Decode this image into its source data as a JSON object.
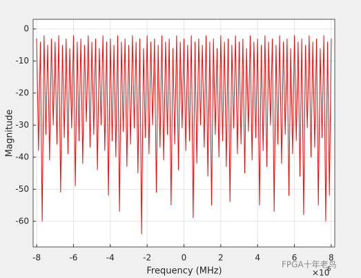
{
  "chart_data": {
    "type": "line",
    "xlabel": "Frequency (MHz)",
    "ylabel": "Magnitude",
    "x_multiplier": {
      "base": "×10",
      "exponent": "6"
    },
    "watermark": "FPGA十年老鸟",
    "xlim": [
      -8.192,
      8.192
    ],
    "ylim": [
      -68,
      3
    ],
    "xticks": [
      -8,
      -6,
      -4,
      -2,
      0,
      2,
      4,
      6,
      8
    ],
    "yticks": [
      0,
      -10,
      -20,
      -30,
      -40,
      -50,
      -60
    ],
    "grid": true,
    "x": [
      -8,
      -7.9,
      -7.8,
      -7.7,
      -7.6,
      -7.5,
      -7.4,
      -7.3,
      -7.2,
      -7.1,
      -7,
      -6.9,
      -6.8,
      -6.7,
      -6.6,
      -6.5,
      -6.4,
      -6.3,
      -6.2,
      -6.1,
      -6,
      -5.9,
      -5.8,
      -5.7,
      -5.6,
      -5.5,
      -5.4,
      -5.3,
      -5.2,
      -5.1,
      -5,
      -4.9,
      -4.8,
      -4.7,
      -4.6,
      -4.5,
      -4.4,
      -4.3,
      -4.2,
      -4.1,
      -4,
      -3.9,
      -3.8,
      -3.7,
      -3.6,
      -3.5,
      -3.4,
      -3.3,
      -3.2,
      -3.1,
      -3,
      -2.9,
      -2.8,
      -2.7,
      -2.6,
      -2.5,
      -2.4,
      -2.3,
      -2.2,
      -2.1,
      -2,
      -1.9,
      -1.8,
      -1.7,
      -1.6,
      -1.5,
      -1.4,
      -1.3,
      -1.2,
      -1.1,
      -1,
      -0.9,
      -0.8,
      -0.7,
      -0.6,
      -0.5,
      -0.4,
      -0.3,
      -0.2,
      -0.1,
      0,
      0.1,
      0.2,
      0.3,
      0.4,
      0.5,
      0.6,
      0.7,
      0.8,
      0.9,
      1,
      1.1,
      1.2,
      1.3,
      1.4,
      1.5,
      1.6,
      1.7,
      1.8,
      1.9,
      2,
      2.1,
      2.2,
      2.3,
      2.4,
      2.5,
      2.6,
      2.7,
      2.8,
      2.9,
      3,
      3.1,
      3.2,
      3.3,
      3.4,
      3.5,
      3.6,
      3.7,
      3.8,
      3.9,
      4,
      4.1,
      4.2,
      4.3,
      4.4,
      4.5,
      4.6,
      4.7,
      4.8,
      4.9,
      5,
      5.1,
      5.2,
      5.3,
      5.4,
      5.5,
      5.6,
      5.7,
      5.8,
      5.9,
      6,
      6.1,
      6.2,
      6.3,
      6.4,
      6.5,
      6.6,
      6.7,
      6.8,
      6.9,
      7,
      7.1,
      7.2,
      7.3,
      7.4,
      7.5,
      7.6,
      7.7,
      7.8,
      7.9,
      8
    ],
    "series": [
      {
        "color": "#ff0000",
        "values": [
          -3,
          -38,
          -4,
          -60,
          -2,
          -33,
          -5,
          -41,
          -3,
          -30,
          -4,
          -36,
          -2,
          -51,
          -5,
          -34,
          -3,
          -39,
          -6,
          -31,
          -2,
          -49,
          -4,
          -35,
          -3,
          -42,
          -5,
          -29,
          -2,
          -37,
          -4,
          -33,
          -3,
          -44,
          -6,
          -30,
          -2,
          -38,
          -4,
          -52,
          -3,
          -35,
          -5,
          -40,
          -2,
          -57,
          -4,
          -32,
          -3,
          -43,
          -5,
          -36,
          -2,
          -31,
          -4,
          -45,
          -3,
          -64,
          -6,
          -34,
          -2,
          -39,
          -4,
          -30,
          -3,
          -51,
          -5,
          -37,
          -2,
          -41,
          -4,
          -33,
          -3,
          -55,
          -6,
          -36,
          -2,
          -44,
          -4,
          -31,
          -3,
          -38,
          -5,
          -35,
          -2,
          -59,
          -4,
          -42,
          -3,
          -30,
          -5,
          -37,
          -2,
          -46,
          -4,
          -55,
          -3,
          -33,
          -6,
          -40,
          -2,
          -35,
          -4,
          -43,
          -3,
          -54,
          -5,
          -31,
          -2,
          -39,
          -4,
          -36,
          -3,
          -45,
          -6,
          -32,
          -2,
          -41,
          -4,
          -34,
          -3,
          -55,
          -5,
          -38,
          -2,
          -43,
          -4,
          -30,
          -3,
          -57,
          -5,
          -36,
          -2,
          -42,
          -4,
          -33,
          -3,
          -52,
          -6,
          -39,
          -2,
          -35,
          -4,
          -46,
          -3,
          -58,
          -5,
          -31,
          -2,
          -40,
          -4,
          -37,
          -3,
          -55,
          -6,
          -34,
          -2,
          -60,
          -4,
          -52,
          -3
        ]
      }
    ]
  }
}
